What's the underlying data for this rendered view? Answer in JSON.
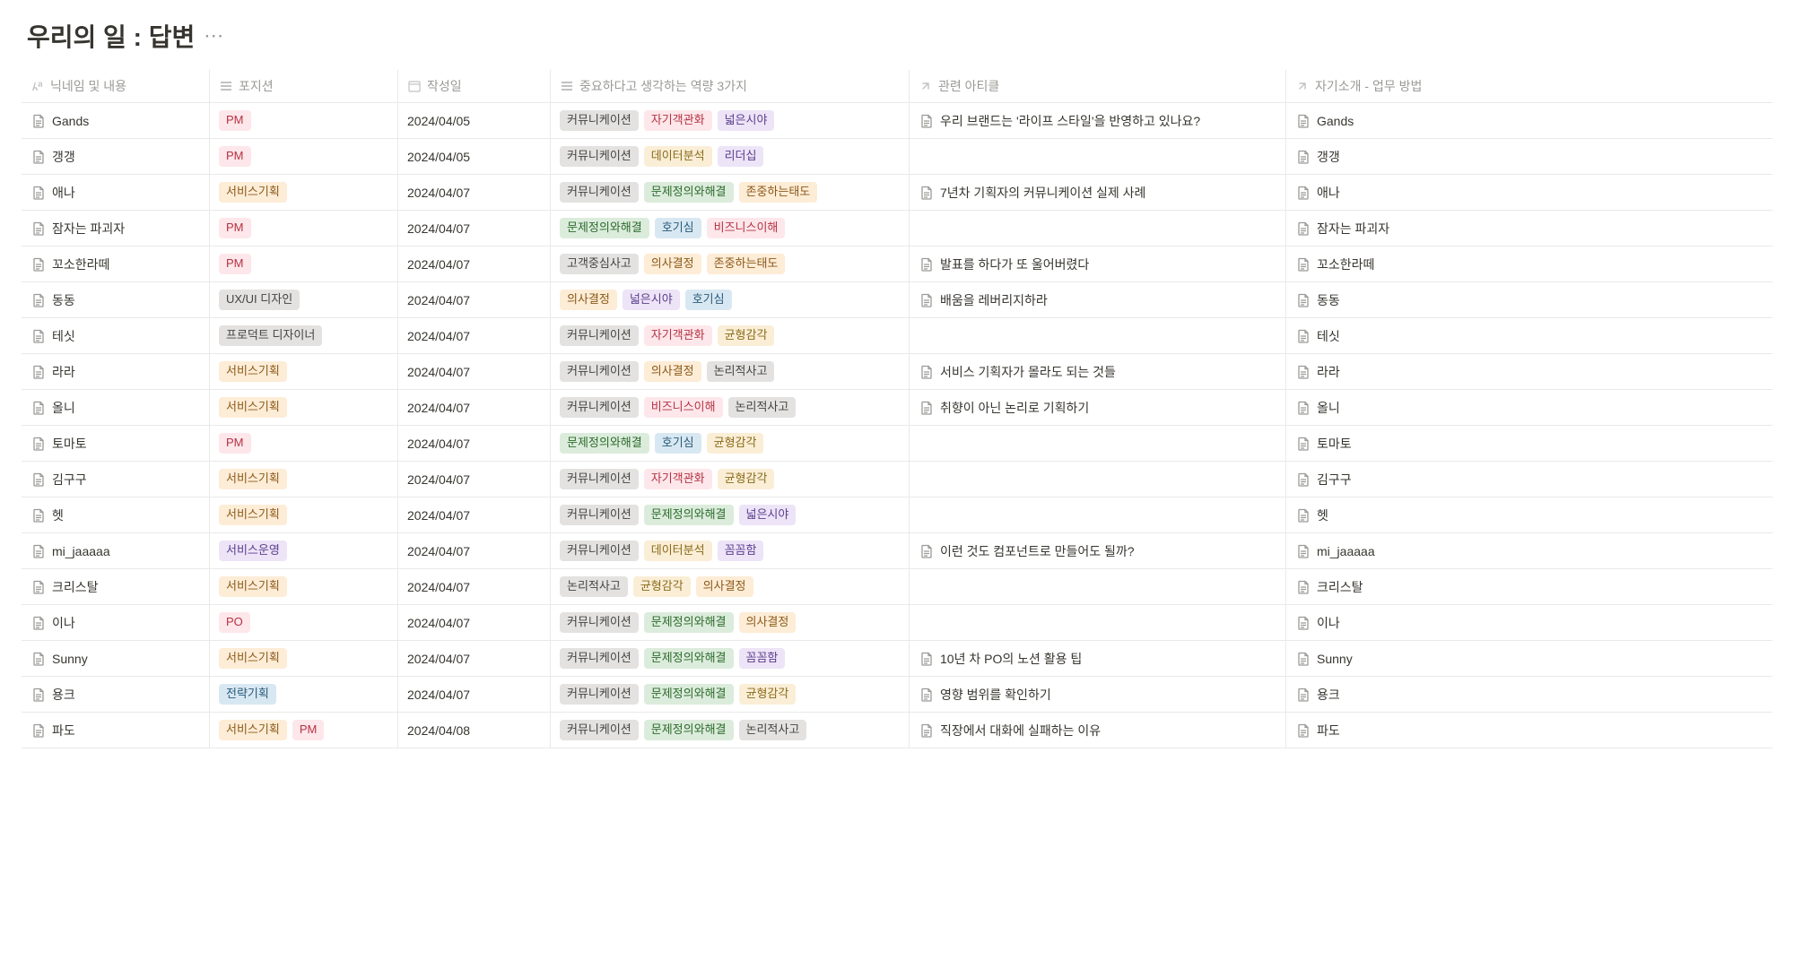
{
  "title": "우리의 일 : 답변",
  "columns": {
    "nickname": "닉네임 및 내용",
    "position": "포지션",
    "date": "작성일",
    "skills": "중요하다고 생각하는 역량 3가지",
    "article": "관련 아티클",
    "intro": "자기소개 - 업무 방법"
  },
  "tag_colors": {
    "PM": {
      "bg": "#fde7ea",
      "fg": "#b53244"
    },
    "서비스기획": {
      "bg": "#fdecd6",
      "fg": "#8a5a1a"
    },
    "UX/UI 디자인": {
      "bg": "#e3e2e0",
      "fg": "#454440"
    },
    "프로덕트 디자이너": {
      "bg": "#e3e2e0",
      "fg": "#454440"
    },
    "서비스운영": {
      "bg": "#ede4f7",
      "fg": "#5a3e8e"
    },
    "PO": {
      "bg": "#fde7ea",
      "fg": "#b53244"
    },
    "전략기획": {
      "bg": "#d8e8f2",
      "fg": "#2a5a7a"
    },
    "커뮤니케이션": {
      "bg": "#e3e2e0",
      "fg": "#454440"
    },
    "자기객관화": {
      "bg": "#fde7ea",
      "fg": "#b53244"
    },
    "넓은시야": {
      "bg": "#ede4f7",
      "fg": "#5a3e8e"
    },
    "데이터분석": {
      "bg": "#faeed6",
      "fg": "#8a6a1a"
    },
    "리더십": {
      "bg": "#ede4f7",
      "fg": "#5a3e8e"
    },
    "문제정의와해결": {
      "bg": "#dcecdc",
      "fg": "#2d6b2d"
    },
    "존중하는태도": {
      "bg": "#fdecd6",
      "fg": "#8a5a1a"
    },
    "호기심": {
      "bg": "#d8e8f2",
      "fg": "#2a5a7a"
    },
    "비즈니스이해": {
      "bg": "#fde7ea",
      "fg": "#b53244"
    },
    "고객중심사고": {
      "bg": "#e3e2e0",
      "fg": "#454440"
    },
    "의사결정": {
      "bg": "#fdecd6",
      "fg": "#8a5a1a"
    },
    "균형감각": {
      "bg": "#faeed6",
      "fg": "#8a6a1a"
    },
    "논리적사고": {
      "bg": "#e3e2e0",
      "fg": "#454440"
    },
    "꼼꼼함": {
      "bg": "#ede4f7",
      "fg": "#5a3e8e"
    }
  },
  "rows": [
    {
      "name": "Gands",
      "positions": [
        "PM"
      ],
      "date": "2024/04/05",
      "skills": [
        "커뮤니케이션",
        "자기객관화",
        "넓은시야"
      ],
      "article": "우리 브랜드는 '라이프 스타일'을 반영하고 있나요?",
      "intro": "Gands"
    },
    {
      "name": "갱갱",
      "positions": [
        "PM"
      ],
      "date": "2024/04/05",
      "skills": [
        "커뮤니케이션",
        "데이터분석",
        "리더십"
      ],
      "article": "",
      "intro": "갱갱"
    },
    {
      "name": "애나",
      "positions": [
        "서비스기획"
      ],
      "date": "2024/04/07",
      "skills": [
        "커뮤니케이션",
        "문제정의와해결",
        "존중하는태도"
      ],
      "article": "7년차 기획자의 커뮤니케이션 실제 사례",
      "intro": "애나"
    },
    {
      "name": "잠자는 파괴자",
      "positions": [
        "PM"
      ],
      "date": "2024/04/07",
      "skills": [
        "문제정의와해결",
        "호기심",
        "비즈니스이해"
      ],
      "article": "",
      "intro": "잠자는 파괴자"
    },
    {
      "name": "꼬소한라떼",
      "positions": [
        "PM"
      ],
      "date": "2024/04/07",
      "skills": [
        "고객중심사고",
        "의사결정",
        "존중하는태도"
      ],
      "article": "발표를 하다가 또 울어버렸다",
      "intro": "꼬소한라떼"
    },
    {
      "name": "동동",
      "positions": [
        "UX/UI 디자인"
      ],
      "date": "2024/04/07",
      "skills": [
        "의사결정",
        "넓은시야",
        "호기심"
      ],
      "article": "배움을 레버리지하라",
      "intro": "동동"
    },
    {
      "name": "테싯",
      "positions": [
        "프로덕트 디자이너"
      ],
      "date": "2024/04/07",
      "skills": [
        "커뮤니케이션",
        "자기객관화",
        "균형감각"
      ],
      "article": "",
      "intro": "테싯"
    },
    {
      "name": "라라",
      "positions": [
        "서비스기획"
      ],
      "date": "2024/04/07",
      "skills": [
        "커뮤니케이션",
        "의사결정",
        "논리적사고"
      ],
      "article": "서비스 기획자가 몰라도 되는 것들",
      "intro": "라라"
    },
    {
      "name": "올니",
      "positions": [
        "서비스기획"
      ],
      "date": "2024/04/07",
      "skills": [
        "커뮤니케이션",
        "비즈니스이해",
        "논리적사고"
      ],
      "article": "취향이 아닌 논리로 기획하기",
      "intro": "올니"
    },
    {
      "name": "토마토",
      "positions": [
        "PM"
      ],
      "date": "2024/04/07",
      "skills": [
        "문제정의와해결",
        "호기심",
        "균형감각"
      ],
      "article": "",
      "intro": "토마토"
    },
    {
      "name": "김구구",
      "positions": [
        "서비스기획"
      ],
      "date": "2024/04/07",
      "skills": [
        "커뮤니케이션",
        "자기객관화",
        "균형감각"
      ],
      "article": "",
      "intro": "김구구"
    },
    {
      "name": "헷",
      "positions": [
        "서비스기획"
      ],
      "date": "2024/04/07",
      "skills": [
        "커뮤니케이션",
        "문제정의와해결",
        "넓은시야"
      ],
      "article": "",
      "intro": "헷"
    },
    {
      "name": "mi_jaaaaa",
      "positions": [
        "서비스운영"
      ],
      "date": "2024/04/07",
      "skills": [
        "커뮤니케이션",
        "데이터분석",
        "꼼꼼함"
      ],
      "article": "이런 것도 컴포넌트로 만들어도 될까?",
      "intro": "mi_jaaaaa"
    },
    {
      "name": "크리스탈",
      "positions": [
        "서비스기획"
      ],
      "date": "2024/04/07",
      "skills": [
        "논리적사고",
        "균형감각",
        "의사결정"
      ],
      "article": "",
      "intro": "크리스탈"
    },
    {
      "name": "이나",
      "positions": [
        "PO"
      ],
      "date": "2024/04/07",
      "skills": [
        "커뮤니케이션",
        "문제정의와해결",
        "의사결정"
      ],
      "article": "",
      "intro": "이나"
    },
    {
      "name": "Sunny",
      "positions": [
        "서비스기획"
      ],
      "date": "2024/04/07",
      "skills": [
        "커뮤니케이션",
        "문제정의와해결",
        "꼼꼼함"
      ],
      "article": "10년 차 PO의 노션 활용 팁",
      "intro": "Sunny"
    },
    {
      "name": "용크",
      "positions": [
        "전략기획"
      ],
      "date": "2024/04/07",
      "skills": [
        "커뮤니케이션",
        "문제정의와해결",
        "균형감각"
      ],
      "article": "영향 범위를 확인하기",
      "intro": "용크"
    },
    {
      "name": "파도",
      "positions": [
        "서비스기획",
        "PM"
      ],
      "date": "2024/04/08",
      "skills": [
        "커뮤니케이션",
        "문제정의와해결",
        "논리적사고"
      ],
      "article": "직장에서 대화에 실패하는 이유",
      "intro": "파도"
    }
  ]
}
